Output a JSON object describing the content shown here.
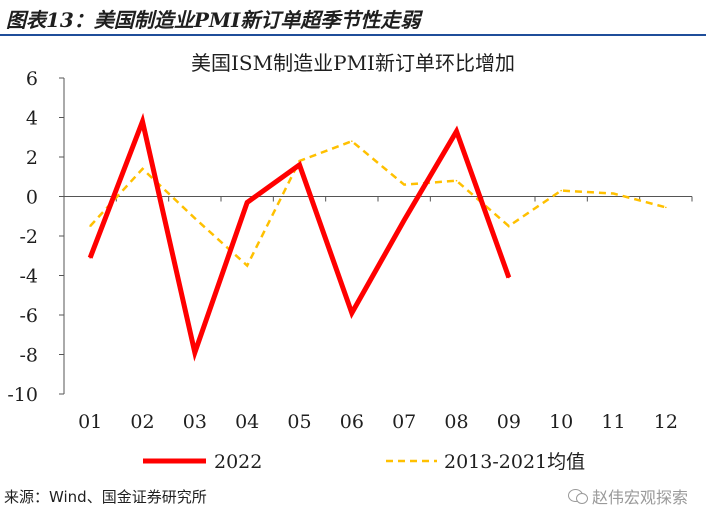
{
  "figure": {
    "title": "图表13：美国制造业PMI新订单超季节性走弱",
    "source": "来源：Wind、国金证券研究所",
    "watermark": "赵伟宏观探索"
  },
  "chart_data": {
    "type": "line",
    "title": "美国ISM制造业PMI新订单环比增加",
    "categories": [
      "01",
      "02",
      "03",
      "04",
      "05",
      "06",
      "07",
      "08",
      "09",
      "10",
      "11",
      "12"
    ],
    "ylim": [
      -10,
      6
    ],
    "yticks": [
      6,
      4,
      2,
      0,
      -2,
      -4,
      -6,
      -8,
      -10
    ],
    "grid": false,
    "legend": "bottom",
    "series": [
      {
        "name": "2022",
        "color": "#ff0000",
        "style": "solid",
        "values": [
          -3.1,
          3.8,
          -7.9,
          -0.3,
          1.6,
          -5.9,
          -1.2,
          3.3,
          -4.1,
          null,
          null,
          null
        ]
      },
      {
        "name": "2013-2021均值",
        "color": "#ffc000",
        "style": "dashed",
        "values": [
          -1.5,
          1.4,
          -1.1,
          -3.5,
          1.8,
          2.8,
          0.6,
          0.8,
          -1.5,
          0.3,
          0.15,
          -0.55
        ]
      }
    ]
  }
}
